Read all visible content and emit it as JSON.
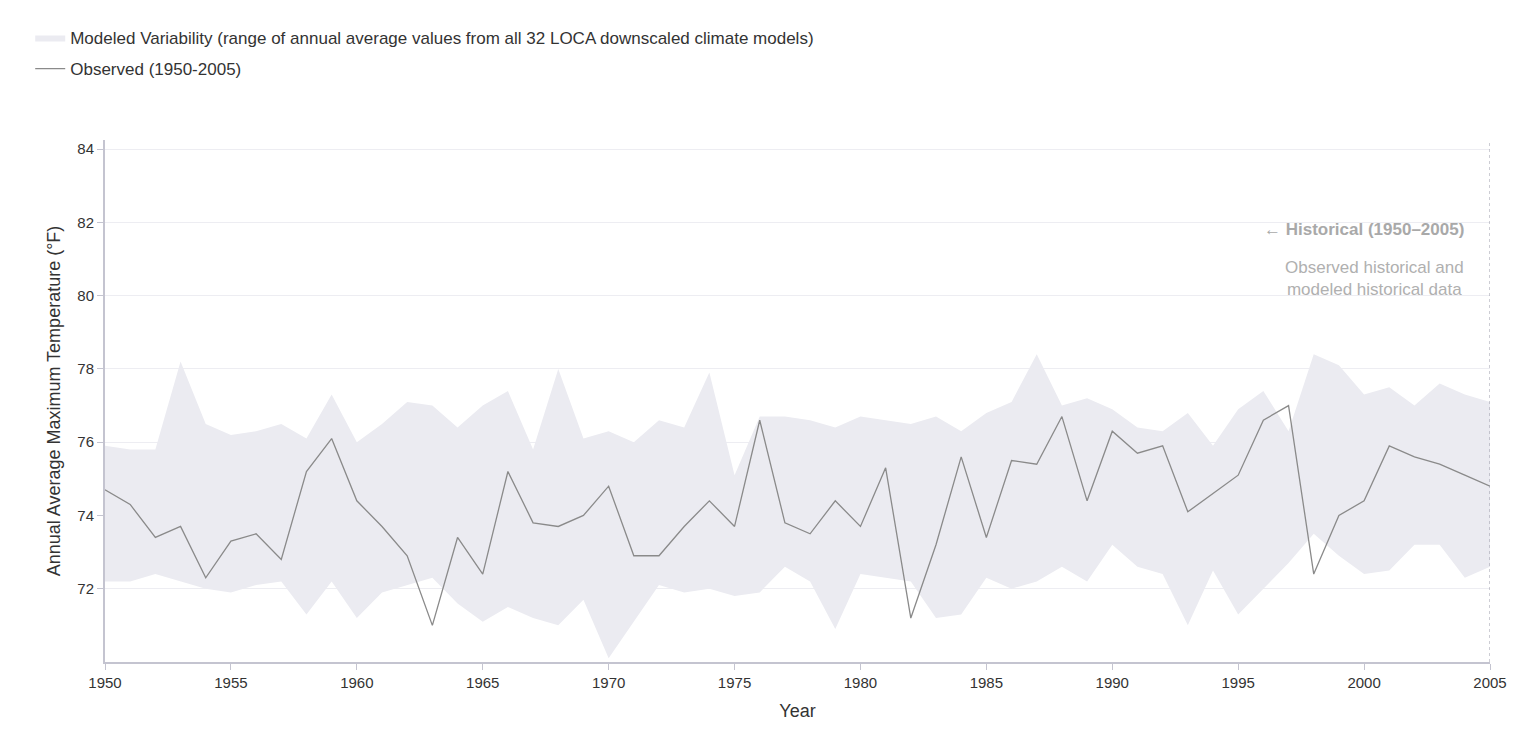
{
  "chart_data": {
    "type": "line",
    "xlabel": "Year",
    "ylabel": "Annual Average Maximum Temperature (°F)",
    "x": [
      1950,
      1951,
      1952,
      1953,
      1954,
      1955,
      1956,
      1957,
      1958,
      1959,
      1960,
      1961,
      1962,
      1963,
      1964,
      1965,
      1966,
      1967,
      1968,
      1969,
      1970,
      1971,
      1972,
      1973,
      1974,
      1975,
      1976,
      1977,
      1978,
      1979,
      1980,
      1981,
      1982,
      1983,
      1984,
      1985,
      1986,
      1987,
      1988,
      1989,
      1990,
      1991,
      1992,
      1993,
      1994,
      1995,
      1996,
      1997,
      1998,
      1999,
      2000,
      2001,
      2002,
      2003,
      2004,
      2005
    ],
    "xlim": [
      1950,
      2005
    ],
    "xticks": [
      1950,
      1955,
      1960,
      1965,
      1970,
      1975,
      1980,
      1985,
      1990,
      1995,
      2000,
      2005
    ],
    "ylim": [
      70,
      84.25
    ],
    "yticks": [
      72,
      74,
      76,
      78,
      80,
      82,
      84
    ],
    "grid": true,
    "legend": "top-left",
    "series": [
      {
        "name": "Modeled Variability (range of annual average values from all 32 LOCA downscaled climate models)",
        "type": "band",
        "color": "#ebebf1",
        "low": [
          72.2,
          72.2,
          72.4,
          72.2,
          72.0,
          71.9,
          72.1,
          72.2,
          71.3,
          72.2,
          71.2,
          71.9,
          72.1,
          72.3,
          71.6,
          71.1,
          71.5,
          71.2,
          71.0,
          71.7,
          70.1,
          71.1,
          72.1,
          71.9,
          72.0,
          71.8,
          71.9,
          72.6,
          72.2,
          70.9,
          72.4,
          72.3,
          72.2,
          71.2,
          71.3,
          72.3,
          72.0,
          72.2,
          72.6,
          72.2,
          73.2,
          72.6,
          72.4,
          71.0,
          72.5,
          71.3,
          72.0,
          72.7,
          73.5,
          72.9,
          72.4,
          72.5,
          73.2,
          73.2,
          72.3,
          72.6
        ],
        "high": [
          75.9,
          75.8,
          75.8,
          78.2,
          76.5,
          76.2,
          76.3,
          76.5,
          76.1,
          77.3,
          76.0,
          76.5,
          77.1,
          77.0,
          76.4,
          77.0,
          77.4,
          75.8,
          78.0,
          76.1,
          76.3,
          76.0,
          76.6,
          76.4,
          77.9,
          75.1,
          76.7,
          76.7,
          76.6,
          76.4,
          76.7,
          76.6,
          76.5,
          76.7,
          76.3,
          76.8,
          77.1,
          78.4,
          77.0,
          77.2,
          76.9,
          76.4,
          76.3,
          76.8,
          75.9,
          76.9,
          77.4,
          76.3,
          78.4,
          78.1,
          77.3,
          77.5,
          77.0,
          77.6,
          77.3,
          77.1
        ]
      },
      {
        "name": "Observed (1950-2005)",
        "type": "line",
        "color": "#8a8a8a",
        "values": [
          74.7,
          74.3,
          73.4,
          73.7,
          72.3,
          73.3,
          73.5,
          72.8,
          75.2,
          76.1,
          74.4,
          73.7,
          72.9,
          71.0,
          73.4,
          72.4,
          75.2,
          73.8,
          73.7,
          74.0,
          74.8,
          72.9,
          72.9,
          73.7,
          74.4,
          73.7,
          76.6,
          73.8,
          73.5,
          74.4,
          73.7,
          75.3,
          71.2,
          73.2,
          75.6,
          73.4,
          75.5,
          75.4,
          76.7,
          74.4,
          76.3,
          75.7,
          75.9,
          74.1,
          74.6,
          75.1,
          76.6,
          77.0,
          72.4,
          74.0,
          74.4,
          75.9,
          75.6,
          75.4,
          75.1,
          74.8
        ]
      }
    ],
    "annotations": [
      {
        "text": "← Historical (1950–2005)"
      },
      {
        "text": "Observed historical and\nmodeled historical data"
      }
    ]
  }
}
